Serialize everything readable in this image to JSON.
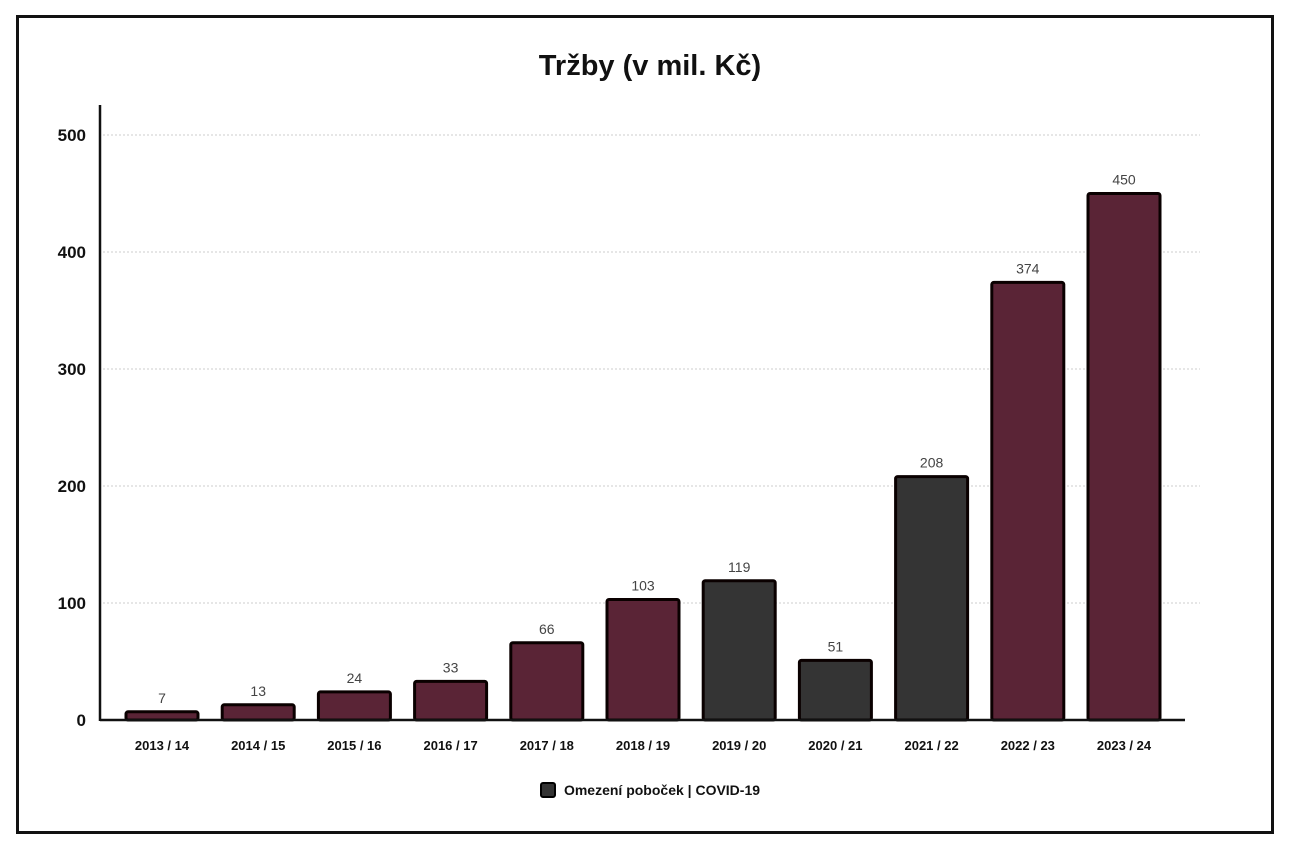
{
  "chart_data": {
    "type": "bar",
    "title": "Tržby (v mil. Kč)",
    "xlabel": "",
    "ylabel": "",
    "ylim": [
      0,
      500
    ],
    "yticks": [
      0,
      100,
      200,
      300,
      400,
      500
    ],
    "grid": "horizontal dotted",
    "categories": [
      "2013 / 14",
      "2014 / 15",
      "2015 / 16",
      "2016 / 17",
      "2017 / 18",
      "2018 / 19",
      "2019 / 20",
      "2020 / 21",
      "2021 / 22",
      "2022 / 23",
      "2023 / 24"
    ],
    "values": [
      7,
      13,
      24,
      33,
      66,
      103,
      119,
      51,
      208,
      374,
      450
    ],
    "highlighted": [
      false,
      false,
      false,
      false,
      false,
      false,
      true,
      true,
      true,
      false,
      false
    ],
    "colors": {
      "default": "#5a2436",
      "highlighted": "#343434"
    },
    "legend": {
      "placement": "bottom",
      "entries": [
        {
          "label": "Omezení poboček | COVID-19",
          "color": "#343434"
        }
      ]
    }
  }
}
